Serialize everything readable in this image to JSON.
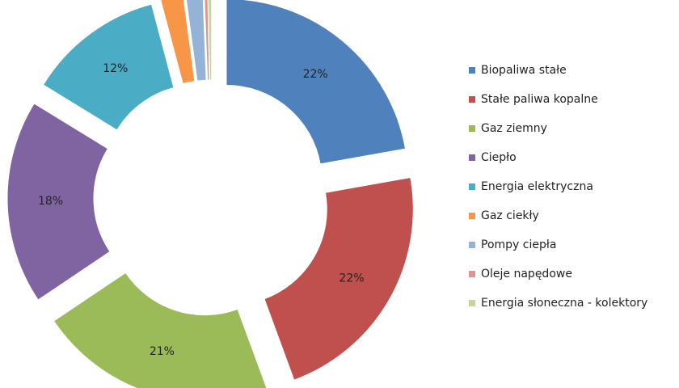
{
  "chart_data": {
    "type": "donut",
    "categories": [
      "Biopaliwa stałe",
      "Stałe paliwa kopalne",
      "Gaz ziemny",
      "Ciepło",
      "Energia elektryczna",
      "Gaz ciekły",
      "Pompy ciepła",
      "Oleje napędowe",
      "Energia słoneczna - kolektory"
    ],
    "values": [
      22,
      22,
      21,
      18,
      12,
      2,
      1.5,
      0.3,
      0.3
    ],
    "value_labels": [
      "22%",
      "22%",
      "21%",
      "18%",
      "12%",
      null,
      null,
      null,
      null
    ],
    "colors": [
      "#4f81bd",
      "#c0504d",
      "#9bbb59",
      "#8064a2",
      "#4bacc6",
      "#f79646",
      "#95b3d7",
      "#d99694",
      "#c3d69b"
    ],
    "legend": "right"
  }
}
